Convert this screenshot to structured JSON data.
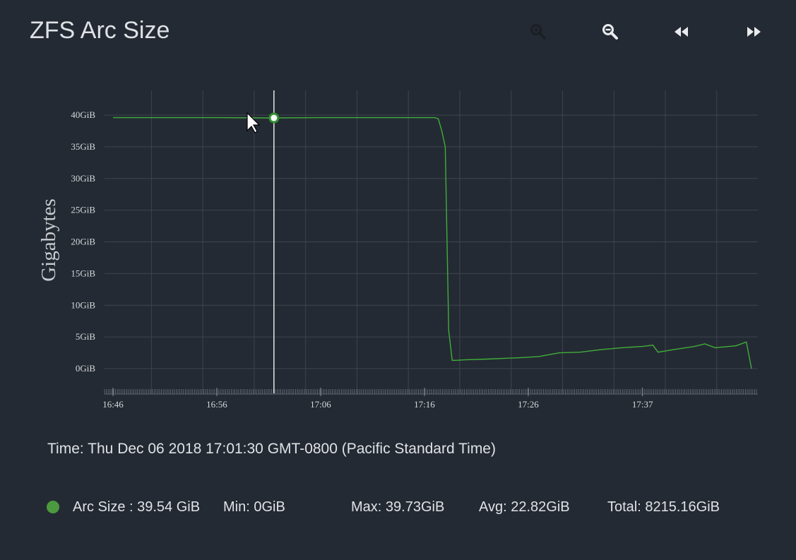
{
  "header": {
    "title": "ZFS Arc Size"
  },
  "toolbar": {
    "icons": [
      "zoom-in-icon",
      "zoom-out-icon",
      "rewind-icon",
      "fast-forward-icon"
    ]
  },
  "colors": {
    "background": "#242a33",
    "series": "#3fae3a",
    "grid": "#3d444e",
    "cursor": "#e6e6e6"
  },
  "chart_data": {
    "type": "line",
    "ylabel": "Gigabytes",
    "xlabel": "",
    "ylim": [
      0,
      40
    ],
    "y_ticks": [
      "0GiB",
      "5GiB",
      "10GiB",
      "15GiB",
      "20GiB",
      "25GiB",
      "30GiB",
      "35GiB",
      "40GiB"
    ],
    "x_ticks": [
      "16:46",
      "16:56",
      "17:06",
      "17:16",
      "17:26",
      "17:37"
    ],
    "grid": true,
    "cursor_time": "17:01:30",
    "series": [
      {
        "name": "Arc Size",
        "x": [
          "16:46",
          "16:51",
          "16:56",
          "17:01",
          "17:06",
          "17:11",
          "17:16",
          "17:17",
          "17:17:20",
          "17:17:40",
          "17:18",
          "17:18:20",
          "17:18:40",
          "17:19",
          "17:20",
          "17:22",
          "17:25",
          "17:27",
          "17:29",
          "17:31",
          "17:33",
          "17:35",
          "17:37",
          "17:38",
          "17:38:30",
          "17:40",
          "17:42",
          "17:43",
          "17:44",
          "17:46",
          "17:47",
          "17:47:30"
        ],
        "values": [
          39.6,
          39.6,
          39.6,
          39.55,
          39.6,
          39.6,
          39.6,
          39.6,
          39.4,
          37.5,
          35.0,
          6.0,
          1.3,
          1.3,
          1.4,
          1.5,
          1.7,
          1.9,
          2.5,
          2.6,
          3.0,
          3.3,
          3.5,
          3.7,
          2.6,
          3.0,
          3.5,
          3.9,
          3.3,
          3.6,
          4.2,
          0.0
        ]
      }
    ]
  },
  "status": {
    "time_label": "Time: Thu Dec 06 2018 17:01:30 GMT-0800 (Pacific Standard Time)",
    "legend_name": "Arc Size : 39.54 GiB",
    "min": "Min: 0GiB",
    "max": "Max: 39.73GiB",
    "avg": "Avg: 22.82GiB",
    "total": "Total: 8215.16GiB"
  }
}
